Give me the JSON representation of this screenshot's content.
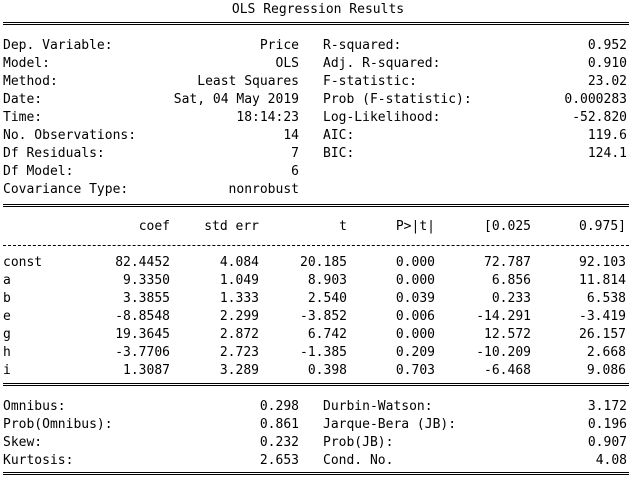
{
  "title": "OLS Regression Results",
  "summary_left": [
    {
      "label": "Dep. Variable:",
      "value": "Price"
    },
    {
      "label": "Model:",
      "value": "OLS"
    },
    {
      "label": "Method:",
      "value": "Least Squares"
    },
    {
      "label": "Date:",
      "value": "Sat, 04 May 2019"
    },
    {
      "label": "Time:",
      "value": "18:14:23"
    },
    {
      "label": "No. Observations:",
      "value": "14"
    },
    {
      "label": "Df Residuals:",
      "value": "7"
    },
    {
      "label": "Df Model:",
      "value": "6"
    },
    {
      "label": "Covariance Type:",
      "value": "nonrobust"
    }
  ],
  "summary_right": [
    {
      "label": "R-squared:",
      "value": "0.952"
    },
    {
      "label": "Adj. R-squared:",
      "value": "0.910"
    },
    {
      "label": "F-statistic:",
      "value": "23.02"
    },
    {
      "label": "Prob (F-statistic):",
      "value": "0.000283"
    },
    {
      "label": "Log-Likelihood:",
      "value": "-52.820"
    },
    {
      "label": "AIC:",
      "value": "119.6"
    },
    {
      "label": "BIC:",
      "value": "124.1"
    }
  ],
  "coef_headers": [
    "coef",
    "std err",
    "t",
    "P>|t|",
    "[0.025",
    "0.975]"
  ],
  "coef_rows": [
    {
      "name": "const",
      "values": [
        "82.4452",
        "4.084",
        "20.185",
        "0.000",
        "72.787",
        "92.103"
      ]
    },
    {
      "name": "a",
      "values": [
        "9.3350",
        "1.049",
        "8.903",
        "0.000",
        "6.856",
        "11.814"
      ]
    },
    {
      "name": "b",
      "values": [
        "3.3855",
        "1.333",
        "2.540",
        "0.039",
        "0.233",
        "6.538"
      ]
    },
    {
      "name": "e",
      "values": [
        "-8.8548",
        "2.299",
        "-3.852",
        "0.006",
        "-14.291",
        "-3.419"
      ]
    },
    {
      "name": "g",
      "values": [
        "19.3645",
        "2.872",
        "6.742",
        "0.000",
        "12.572",
        "26.157"
      ]
    },
    {
      "name": "h",
      "values": [
        "-3.7706",
        "2.723",
        "-1.385",
        "0.209",
        "-10.209",
        "2.668"
      ]
    },
    {
      "name": "i",
      "values": [
        "1.3087",
        "3.289",
        "0.398",
        "0.703",
        "-6.468",
        "9.086"
      ]
    }
  ],
  "diag_left": [
    {
      "label": "Omnibus:",
      "value": "0.298"
    },
    {
      "label": "Prob(Omnibus):",
      "value": "0.861"
    },
    {
      "label": "Skew:",
      "value": "0.232"
    },
    {
      "label": "Kurtosis:",
      "value": "2.653"
    }
  ],
  "diag_right": [
    {
      "label": "Durbin-Watson:",
      "value": "3.172"
    },
    {
      "label": "Jarque-Bera (JB):",
      "value": "0.196"
    },
    {
      "label": "Prob(JB):",
      "value": "0.907"
    },
    {
      "label": "Cond. No.",
      "value": "4.08"
    }
  ]
}
